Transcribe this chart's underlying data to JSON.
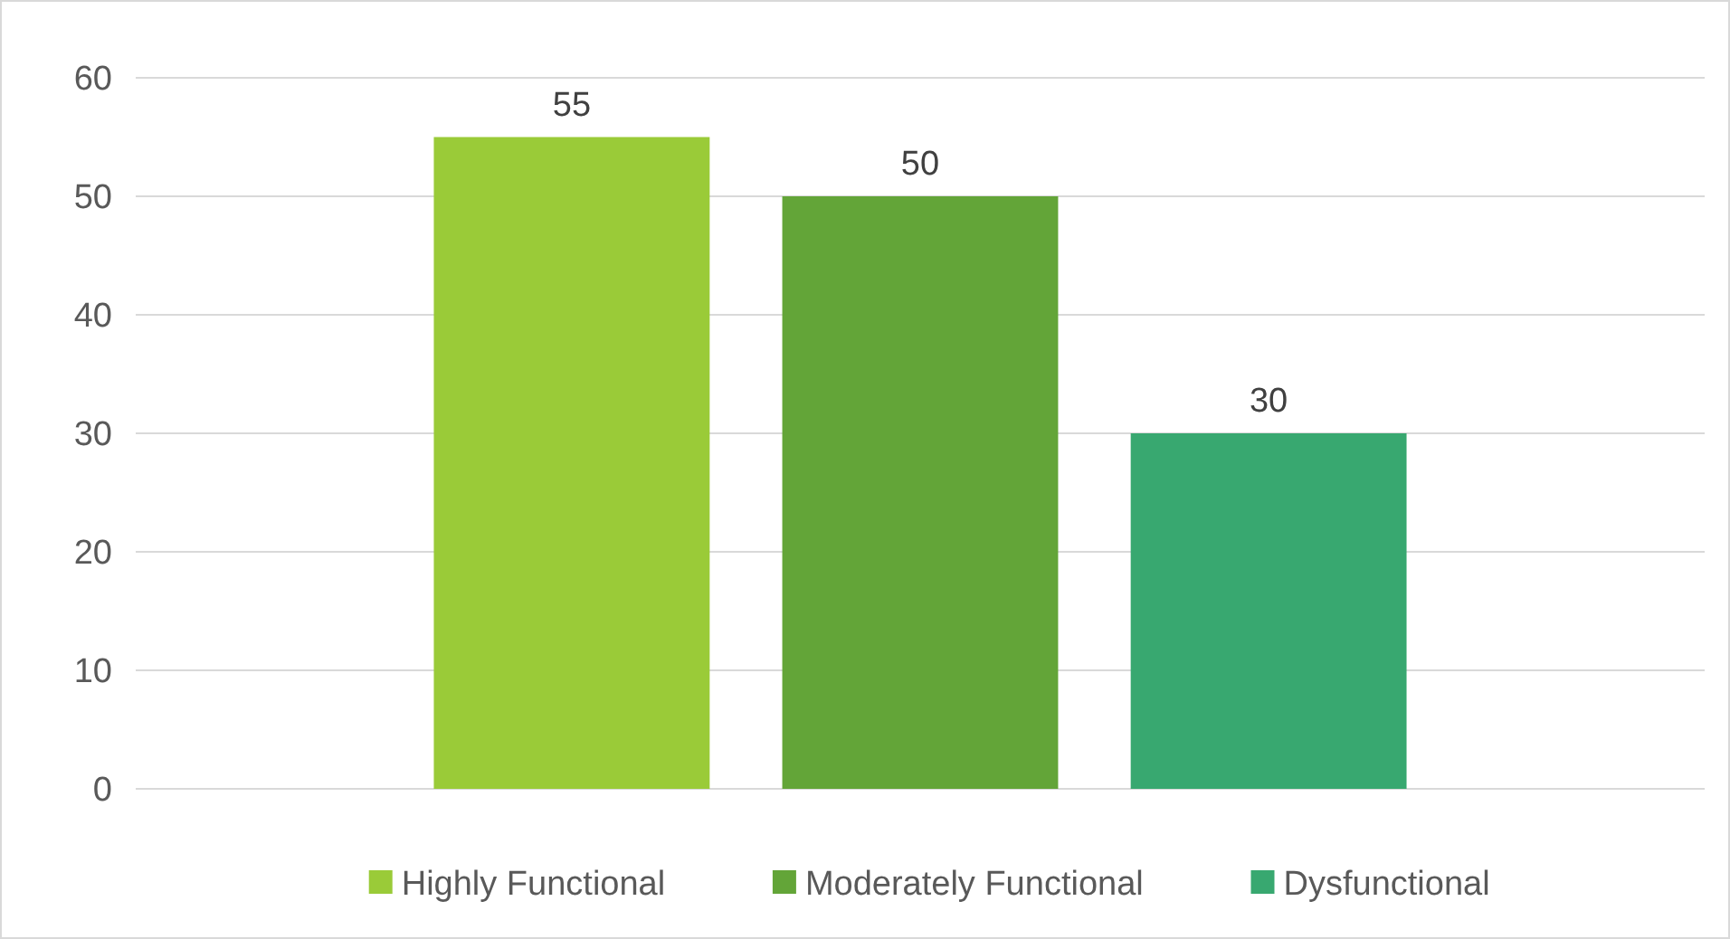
{
  "chart_data": {
    "type": "bar",
    "categories": [
      null
    ],
    "series": [
      {
        "name": "Highly Functional",
        "color": "#9acb38",
        "values": [
          55
        ]
      },
      {
        "name": "Moderately Functional",
        "color": "#63a538",
        "values": [
          50
        ]
      },
      {
        "name": "Dysfunctional",
        "color": "#38a870",
        "values": [
          30
        ]
      }
    ],
    "ylim": [
      0,
      60
    ],
    "yticks": [
      0,
      10,
      20,
      30,
      40,
      50,
      60
    ],
    "grid": "y",
    "legend": "bottom",
    "data_labels": true
  }
}
